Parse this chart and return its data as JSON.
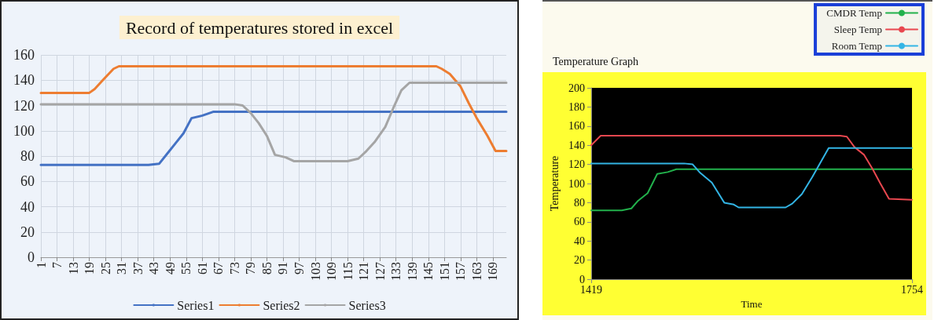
{
  "chart_data": [
    {
      "type": "line",
      "title": "Record of temperatures stored in excel",
      "xlim": [
        1,
        174
      ],
      "xticks": [
        1,
        7,
        13,
        19,
        25,
        31,
        37,
        43,
        49,
        55,
        61,
        67,
        73,
        79,
        85,
        91,
        97,
        103,
        109,
        115,
        121,
        127,
        133,
        139,
        145,
        151,
        157,
        163,
        169
      ],
      "ylim": [
        0,
        160
      ],
      "yticks": [
        0,
        20,
        40,
        60,
        80,
        100,
        120,
        140,
        160
      ],
      "grid": true,
      "legend": "bottom",
      "series": [
        {
          "name": "Series1",
          "color": "#4472c4",
          "x": [
            1,
            41,
            45,
            48,
            51,
            54,
            57,
            61,
            65,
            174
          ],
          "values": [
            73,
            73,
            74,
            82,
            90,
            98,
            110,
            112,
            115,
            115
          ]
        },
        {
          "name": "Series2",
          "color": "#ed7d31",
          "x": [
            1,
            19,
            21,
            24,
            28,
            30,
            148,
            150,
            153,
            157,
            160,
            163,
            167,
            170,
            174
          ],
          "values": [
            130,
            130,
            133,
            140,
            149,
            151,
            151,
            149,
            145,
            135,
            122,
            110,
            96,
            84,
            84
          ]
        },
        {
          "name": "Series3",
          "color": "#a5a5a5",
          "x": [
            1,
            73,
            76,
            79,
            82,
            85,
            88,
            92,
            95,
            115,
            119,
            122,
            125,
            129,
            132,
            135,
            138,
            174
          ],
          "values": [
            121,
            121,
            120,
            114,
            106,
            96,
            81,
            79,
            76,
            76,
            78,
            84,
            91,
            103,
            118,
            132,
            138,
            138
          ]
        }
      ]
    },
    {
      "type": "line",
      "title": "Temperature Graph",
      "xlabel": "Time",
      "ylabel": "Temperature",
      "xlim": [
        1419,
        1754
      ],
      "xticks": [
        1419,
        1754
      ],
      "ylim": [
        0,
        200
      ],
      "yticks": [
        0,
        20,
        40,
        60,
        80,
        100,
        120,
        140,
        160,
        180,
        200
      ],
      "grid": false,
      "legend": "top right",
      "series": [
        {
          "name": "CMDR Temp",
          "color": "#22b14c",
          "x": [
            1419,
            1451,
            1461,
            1468,
            1478,
            1488,
            1499,
            1508,
            1754
          ],
          "values": [
            72,
            72,
            74,
            82,
            90,
            110,
            112,
            115,
            115
          ]
        },
        {
          "name": "Sleep Temp",
          "color": "#e8474f",
          "x": [
            1419,
            1429,
            1679,
            1686,
            1694,
            1704,
            1713,
            1721,
            1730,
            1754
          ],
          "values": [
            140,
            150,
            150,
            149,
            138,
            130,
            115,
            100,
            84,
            83
          ]
        },
        {
          "name": "Room Temp",
          "color": "#33b5e5",
          "x": [
            1419,
            1516,
            1525,
            1533,
            1545,
            1558,
            1568,
            1573,
            1622,
            1629,
            1639,
            1650,
            1659,
            1667,
            1754
          ],
          "values": [
            121,
            121,
            120,
            111,
            101,
            80,
            78,
            75,
            75,
            79,
            89,
            107,
            123,
            137,
            137
          ]
        }
      ]
    }
  ]
}
